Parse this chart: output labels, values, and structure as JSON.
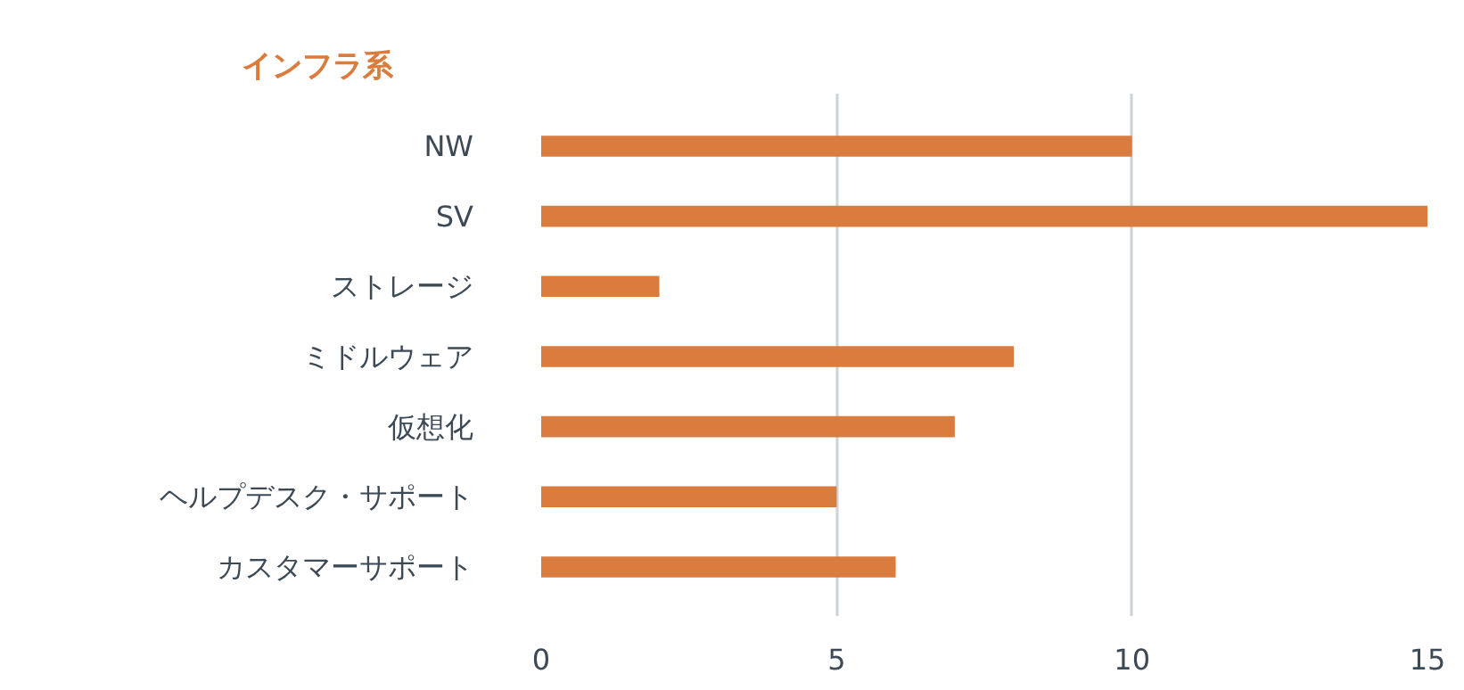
{
  "chart_data": {
    "type": "bar",
    "orientation": "horizontal",
    "title": "インフラ系",
    "categories": [
      "NW",
      "SV",
      "ストレージ",
      "ミドルウェア",
      "仮想化",
      "ヘルプデスク・サポート",
      "カスタマーサポート"
    ],
    "values": [
      10,
      15,
      2,
      8,
      7,
      5,
      6
    ],
    "color": "#d97c3e",
    "xlim": [
      0,
      15
    ],
    "xticks": [
      0,
      5,
      10,
      15
    ],
    "grid": "x"
  }
}
